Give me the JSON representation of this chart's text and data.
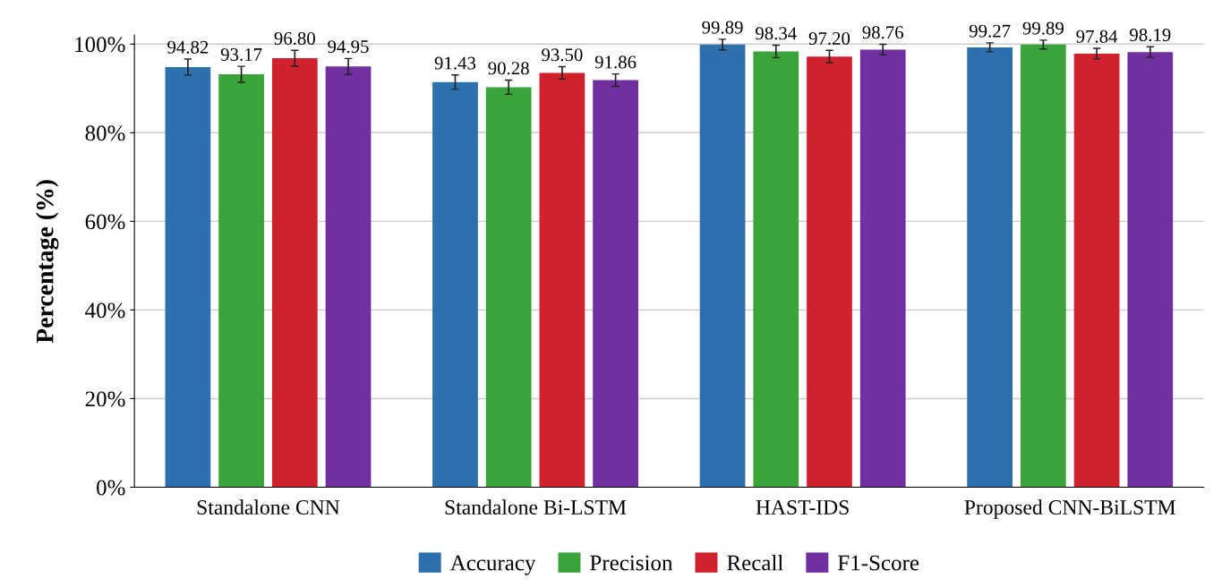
{
  "chart_data": {
    "type": "bar",
    "ylabel": "Percentage (%)",
    "categories": [
      "Standalone CNN",
      "Standalone Bi-LSTM",
      "HAST-IDS",
      "Proposed CNN-BiLSTM"
    ],
    "series": [
      {
        "name": "Accuracy",
        "color": "#2e6fad",
        "values": [
          94.82,
          91.43,
          99.89,
          99.27
        ],
        "errors": [
          1.8,
          1.6,
          1.2,
          1.0
        ],
        "value_labels": [
          "94.82",
          "91.43",
          "99.89",
          "99.27"
        ]
      },
      {
        "name": "Precision",
        "color": "#3aa43a",
        "values": [
          93.17,
          90.28,
          98.34,
          99.89
        ],
        "errors": [
          1.8,
          1.6,
          1.4,
          1.0
        ],
        "value_labels": [
          "93.17",
          "90.28",
          "98.34",
          "99.89"
        ]
      },
      {
        "name": "Recall",
        "color": "#d0212e",
        "values": [
          96.8,
          93.5,
          97.2,
          97.84
        ],
        "errors": [
          1.8,
          1.4,
          1.4,
          1.2
        ],
        "value_labels": [
          "96.80",
          "93.50",
          "97.20",
          "97.84"
        ]
      },
      {
        "name": "F1-Score",
        "color": "#7030a0",
        "values": [
          94.95,
          91.86,
          98.76,
          98.19
        ],
        "errors": [
          1.8,
          1.4,
          1.2,
          1.2
        ],
        "value_labels": [
          "94.95",
          "91.86",
          "98.76",
          "98.19"
        ]
      }
    ],
    "ylim": [
      0,
      102
    ],
    "yticks": [
      {
        "value": 0,
        "label": "0%"
      },
      {
        "value": 20,
        "label": "20%"
      },
      {
        "value": 40,
        "label": "40%"
      },
      {
        "value": 60,
        "label": "60%"
      },
      {
        "value": 80,
        "label": "80%"
      },
      {
        "value": 100,
        "label": "100%"
      }
    ],
    "grid": "y",
    "legend": "bottom"
  }
}
